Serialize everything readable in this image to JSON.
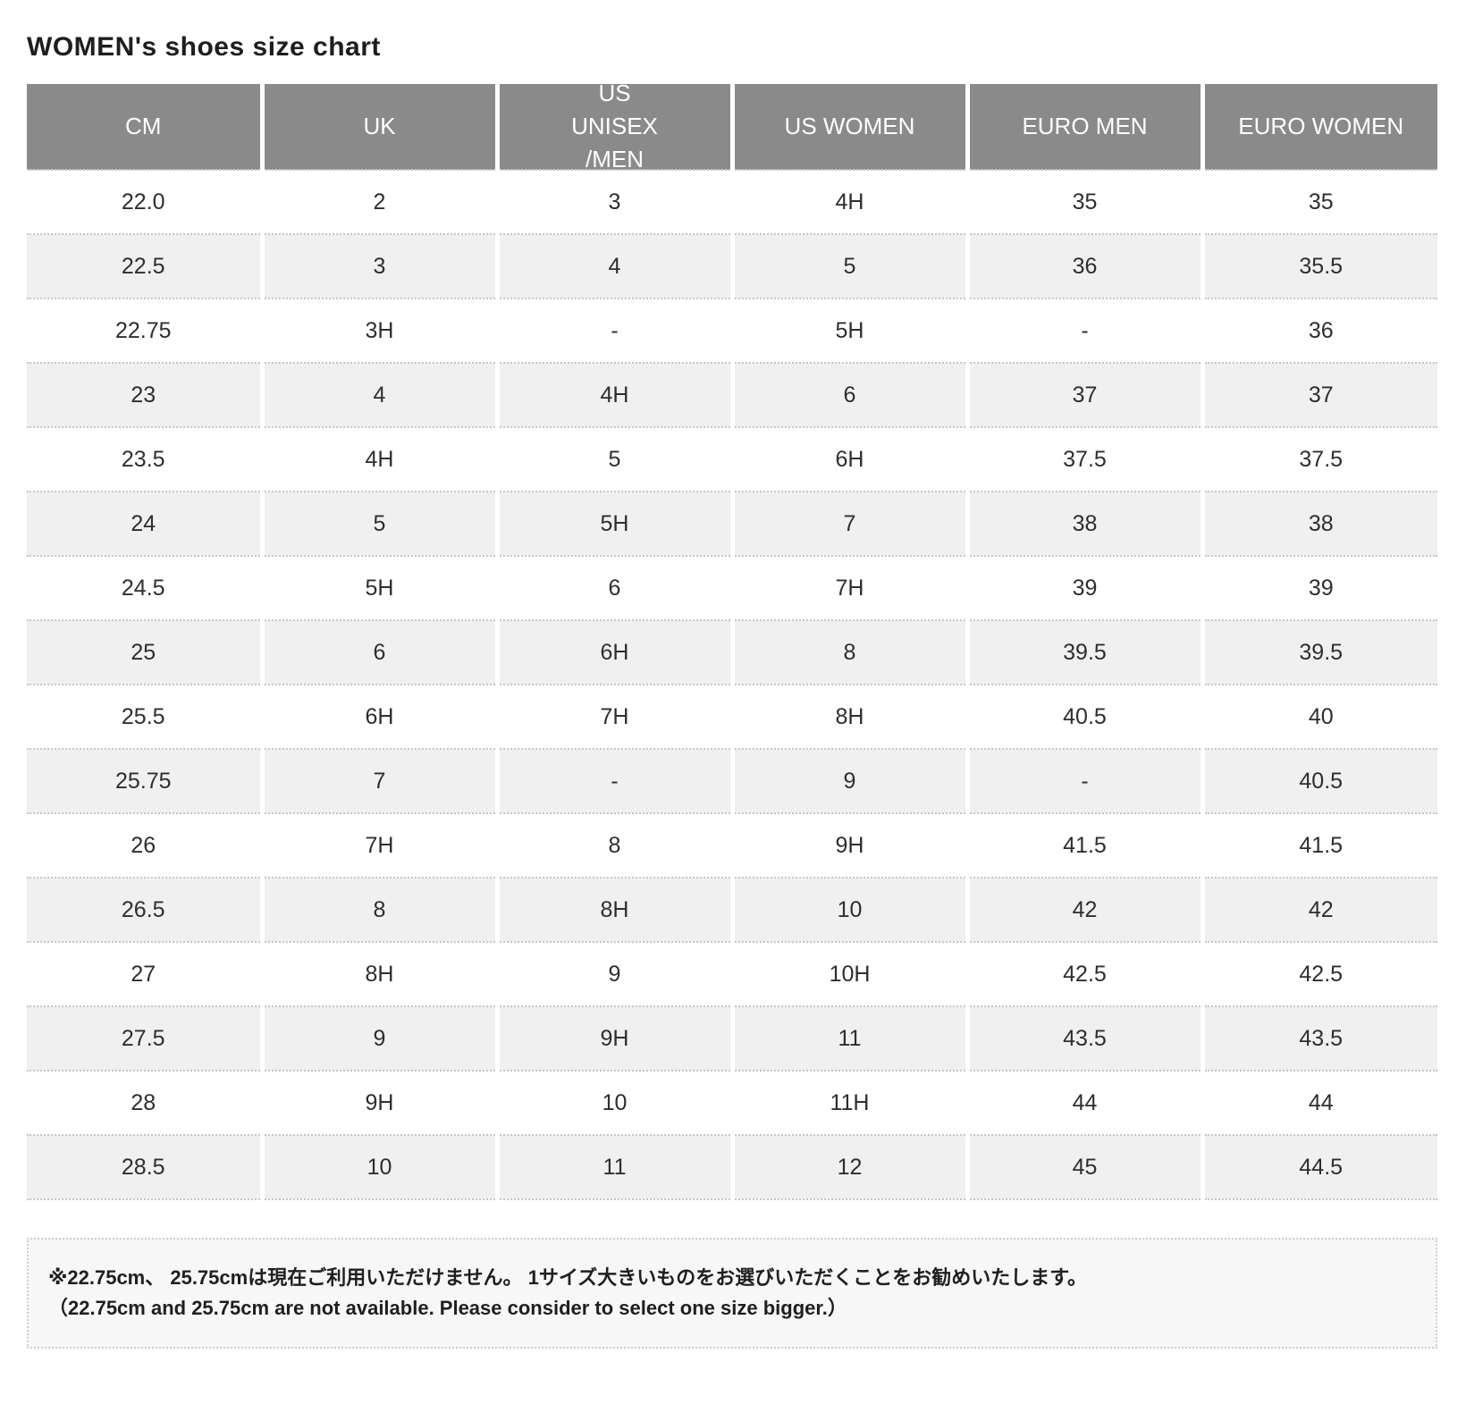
{
  "page": {
    "title": "WOMEN's shoes size chart"
  },
  "size_chart": {
    "columns": [
      "CM",
      "UK",
      "US\nUNISEX\n/MEN",
      "US WOMEN",
      "EURO MEN",
      "EURO WOMEN"
    ],
    "rows": [
      [
        "22.0",
        "2",
        "3",
        "4H",
        "35",
        "35"
      ],
      [
        "22.5",
        "3",
        "4",
        "5",
        "36",
        "35.5"
      ],
      [
        "22.75",
        "3H",
        "-",
        "5H",
        "-",
        "36"
      ],
      [
        "23",
        "4",
        "4H",
        "6",
        "37",
        "37"
      ],
      [
        "23.5",
        "4H",
        "5",
        "6H",
        "37.5",
        "37.5"
      ],
      [
        "24",
        "5",
        "5H",
        "7",
        "38",
        "38"
      ],
      [
        "24.5",
        "5H",
        "6",
        "7H",
        "39",
        "39"
      ],
      [
        "25",
        "6",
        "6H",
        "8",
        "39.5",
        "39.5"
      ],
      [
        "25.5",
        "6H",
        "7H",
        "8H",
        "40.5",
        "40"
      ],
      [
        "25.75",
        "7",
        "-",
        "9",
        "-",
        "40.5"
      ],
      [
        "26",
        "7H",
        "8",
        "9H",
        "41.5",
        "41.5"
      ],
      [
        "26.5",
        "8",
        "8H",
        "10",
        "42",
        "42"
      ],
      [
        "27",
        "8H",
        "9",
        "10H",
        "42.5",
        "42.5"
      ],
      [
        "27.5",
        "9",
        "9H",
        "11",
        "43.5",
        "43.5"
      ],
      [
        "28",
        "9H",
        "10",
        "11H",
        "44",
        "44"
      ],
      [
        "28.5",
        "10",
        "11",
        "12",
        "45",
        "44.5"
      ]
    ]
  },
  "note": {
    "line_ja": "※22.75cm、 25.75cmは現在ご利用いただけません。 1サイズ大きいものをお選びいただくことをお勧めいたします。",
    "line_en": "（22.75cm and 25.75cm are not available. Please consider to select one size bigger.）"
  },
  "colors": {
    "header_bg": "#8a8a8a",
    "header_text": "#ffffff",
    "row_alt_bg": "#f0f0f0",
    "row_bg": "#ffffff",
    "dotted_border": "#c7c7c7",
    "note_bg": "#f7f7f7",
    "text": "#2e2e2e"
  }
}
